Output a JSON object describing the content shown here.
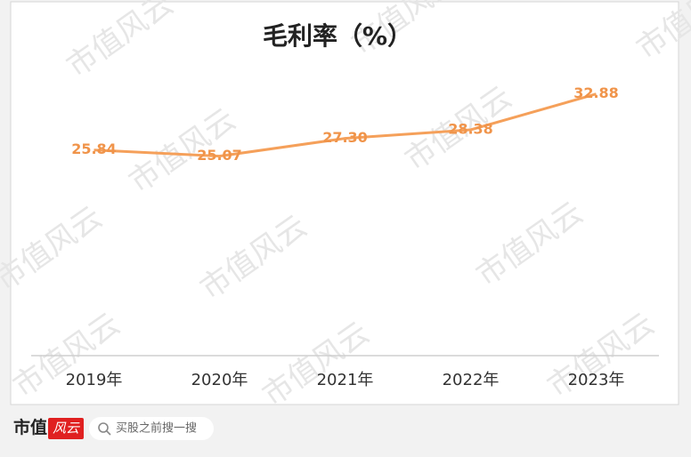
{
  "chart_data": {
    "type": "line",
    "title": "毛利率（%）",
    "categories": [
      "2019年",
      "2020年",
      "2021年",
      "2022年",
      "2023年"
    ],
    "values": [
      25.84,
      25.07,
      27.3,
      28.38,
      32.88
    ],
    "value_labels": [
      "25.84",
      "25.07",
      "27.30",
      "28.38",
      "32.88"
    ],
    "color": "#f5a05a",
    "label_color": "#f0944a",
    "ylim": [
      0,
      40
    ]
  },
  "watermark": "市值风云",
  "footer": {
    "brand": "市值",
    "logo": "风云",
    "search": "买股之前搜一搜"
  }
}
